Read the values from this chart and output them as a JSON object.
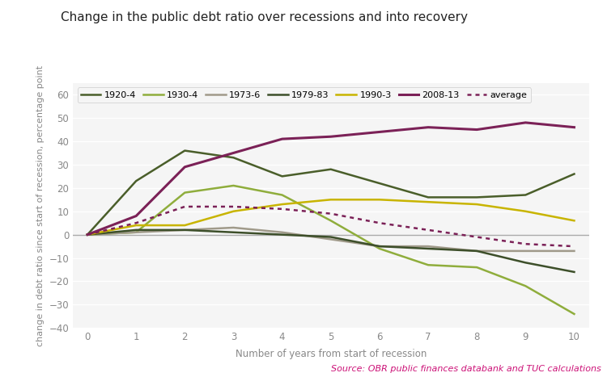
{
  "title": "Change in the public debt ratio over recessions and into recovery",
  "xlabel": "Number of years from start of recession",
  "ylabel": "change in debt ratio since start of recession, percentage point",
  "source": "Source: OBR public finances databank and TUC calculations",
  "xlim": [
    -0.3,
    10.3
  ],
  "ylim": [
    -40,
    65
  ],
  "yticks": [
    -40,
    -30,
    -20,
    -10,
    0,
    10,
    20,
    30,
    40,
    50,
    60
  ],
  "xticks": [
    0,
    1,
    2,
    3,
    4,
    5,
    6,
    7,
    8,
    9,
    10
  ],
  "background_color": "#ffffff",
  "plot_bg_color": "#f5f5f5",
  "grid_color": "#ffffff",
  "series": [
    {
      "label": "1920-4",
      "color": "#4a5e2a",
      "linewidth": 1.8,
      "linestyle": "solid",
      "data": [
        0,
        23,
        36,
        33,
        25,
        28,
        22,
        16,
        16,
        17,
        26
      ]
    },
    {
      "label": "1930-4",
      "color": "#8fad3c",
      "linewidth": 1.8,
      "linestyle": "solid",
      "data": [
        0,
        1,
        18,
        21,
        17,
        6,
        -6,
        -13,
        -14,
        -22,
        -34
      ]
    },
    {
      "label": "1973-6",
      "color": "#a09a8a",
      "linewidth": 1.8,
      "linestyle": "solid",
      "data": [
        0,
        1,
        2,
        3,
        1,
        -2,
        -5,
        -5,
        -7,
        -7,
        -7
      ]
    },
    {
      "label": "1979-83",
      "color": "#3d4f2a",
      "linewidth": 1.8,
      "linestyle": "solid",
      "data": [
        0,
        2,
        2,
        1,
        0,
        -1,
        -5,
        -6,
        -7,
        -12,
        -16
      ]
    },
    {
      "label": "1990-3",
      "color": "#c8b400",
      "linewidth": 1.8,
      "linestyle": "solid",
      "data": [
        0,
        4,
        4,
        10,
        13,
        15,
        15,
        14,
        13,
        10,
        6
      ]
    },
    {
      "label": "2008-13",
      "color": "#7b2157",
      "linewidth": 2.2,
      "linestyle": "solid",
      "data": [
        0,
        8,
        29,
        35,
        41,
        42,
        44,
        46,
        45,
        48,
        46
      ]
    },
    {
      "label": "average",
      "color": "#7b2157",
      "linewidth": 1.8,
      "linestyle": "dotted",
      "data": [
        0,
        5,
        12,
        12,
        11,
        9,
        5,
        2,
        -1,
        -4,
        -5
      ]
    }
  ],
  "title_fontsize": 11,
  "axis_label_fontsize": 8.5,
  "tick_fontsize": 8.5,
  "legend_fontsize": 8,
  "source_color": "#cc1177",
  "source_fontsize": 8,
  "tick_color": "#888888",
  "xlabel_color": "#888888",
  "ylabel_color": "#888888",
  "zeroline_color": "#aaaaaa",
  "zeroline_lw": 1.0
}
